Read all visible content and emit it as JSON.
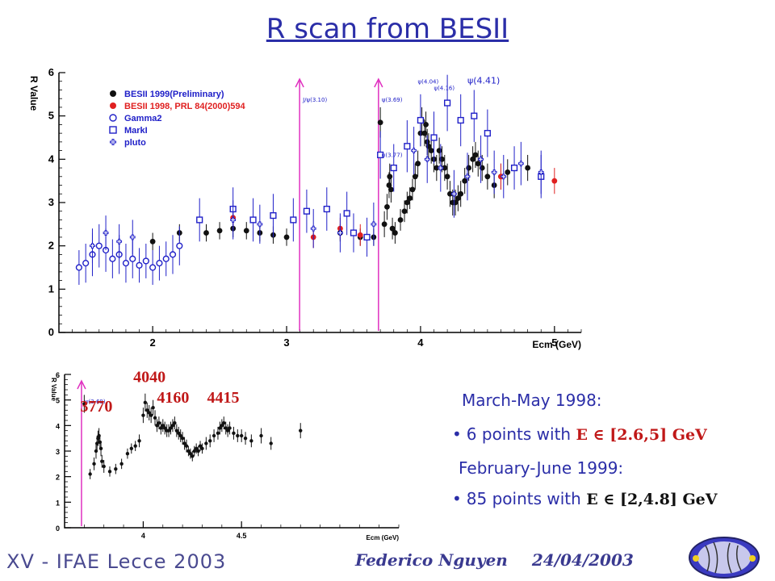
{
  "slide": {
    "title": "R scan from BESII",
    "info": {
      "line1": "March-May 1998:",
      "line2_text": "6 points with ",
      "line2_math": "E ∈ [2.6,5] GeV",
      "line3": "February-June 1999:",
      "line4_text": "85 points with ",
      "line4_math": "E ∈ [2,4.8] GeV"
    },
    "footer": {
      "conference": "XV - IFAE Lecce 2003",
      "author": "Federico Nguyen",
      "date": "24/04/2003"
    }
  },
  "chart_data": [
    {
      "type": "scatter",
      "xlabel": "Ecm (GeV)",
      "ylabel": "R Value",
      "xlim": [
        1.3,
        5.2
      ],
      "ylim": [
        0,
        6
      ],
      "xticks": [
        2,
        3,
        4,
        5
      ],
      "yticks": [
        0,
        1,
        2,
        3,
        4,
        5,
        6
      ],
      "colors": {
        "black": "#111111",
        "red": "#e02020",
        "blue": "#2020c8",
        "magenta": "#e030c0"
      },
      "legend": [
        {
          "label": "BESII 1999(Preliminary)",
          "marker": "filled-circle",
          "color": "black"
        },
        {
          "label": "BESII 1998, PRL 84(2000)594",
          "marker": "filled-circle",
          "color": "red"
        },
        {
          "label": "Gamma2",
          "marker": "open-circle",
          "color": "blue"
        },
        {
          "label": "MarkI",
          "marker": "open-square",
          "color": "blue"
        },
        {
          "label": "pluto",
          "marker": "open-cross",
          "color": "blue"
        }
      ],
      "resonances": [
        {
          "label": "J/ψ(3.10)",
          "x": 3.097
        },
        {
          "label": "ψ(3.69)",
          "x": 3.686
        }
      ],
      "annotations": [
        {
          "label": "ψ(3.77)",
          "x": 3.77,
          "y": 4.05
        },
        {
          "label": "ψ(4.04)",
          "x": 4.04,
          "y": 5.75
        },
        {
          "label": "ψ(4.16)",
          "x": 4.16,
          "y": 5.6
        },
        {
          "label": "ψ(4.41)",
          "x": 4.41,
          "y": 5.75
        }
      ],
      "series": [
        {
          "name": "BESII 1999(Preliminary)",
          "color": "black",
          "marker": "filled-circle",
          "x": [
            2.0,
            2.2,
            2.4,
            2.5,
            2.6,
            2.7,
            2.8,
            2.9,
            3.0,
            3.4,
            3.55,
            3.65,
            3.7,
            3.73,
            3.75,
            3.765,
            3.77,
            3.78,
            3.79,
            3.81,
            3.85,
            3.88,
            3.9,
            3.92,
            3.94,
            3.96,
            3.98,
            4.0,
            4.01,
            4.03,
            4.04,
            4.05,
            4.06,
            4.08,
            4.1,
            4.12,
            4.14,
            4.16,
            4.18,
            4.2,
            4.22,
            4.24,
            4.26,
            4.28,
            4.3,
            4.33,
            4.36,
            4.39,
            4.41,
            4.43,
            4.46,
            4.5,
            4.55,
            4.6,
            4.65,
            4.8
          ],
          "y": [
            2.1,
            2.3,
            2.3,
            2.35,
            2.4,
            2.35,
            2.3,
            2.25,
            2.2,
            2.3,
            2.2,
            2.2,
            4.85,
            2.5,
            2.9,
            3.4,
            3.6,
            3.3,
            2.4,
            2.3,
            2.6,
            2.8,
            3.0,
            3.1,
            3.3,
            3.6,
            3.9,
            4.6,
            4.9,
            4.6,
            4.8,
            4.4,
            4.3,
            4.2,
            4.0,
            3.8,
            4.2,
            4.0,
            3.8,
            3.6,
            3.2,
            3.0,
            3.0,
            3.1,
            3.2,
            3.5,
            3.8,
            4.0,
            4.1,
            3.9,
            3.8,
            3.6,
            3.4,
            3.6,
            3.7,
            3.8
          ],
          "yerr": [
            0.2,
            0.2,
            0.2,
            0.2,
            0.2,
            0.2,
            0.2,
            0.2,
            0.2,
            0.2,
            0.2,
            0.2,
            0.35,
            0.3,
            0.3,
            0.3,
            0.3,
            0.3,
            0.25,
            0.25,
            0.25,
            0.25,
            0.25,
            0.25,
            0.25,
            0.3,
            0.3,
            0.3,
            0.3,
            0.3,
            0.3,
            0.3,
            0.3,
            0.3,
            0.3,
            0.3,
            0.3,
            0.3,
            0.3,
            0.3,
            0.3,
            0.3,
            0.3,
            0.3,
            0.3,
            0.3,
            0.3,
            0.3,
            0.3,
            0.3,
            0.3,
            0.3,
            0.3,
            0.3,
            0.3,
            0.3
          ]
        },
        {
          "name": "BESII 1998, PRL 84(2000)594",
          "color": "red",
          "marker": "filled-circle",
          "x": [
            2.6,
            3.2,
            3.4,
            3.55,
            4.6,
            5.0
          ],
          "y": [
            2.65,
            2.2,
            2.4,
            2.25,
            3.6,
            3.5
          ],
          "yerr": [
            0.25,
            0.25,
            0.25,
            0.25,
            0.3,
            0.3
          ]
        },
        {
          "name": "Gamma2",
          "color": "blue",
          "marker": "open-circle",
          "x": [
            1.45,
            1.5,
            1.55,
            1.6,
            1.65,
            1.7,
            1.75,
            1.8,
            1.85,
            1.9,
            1.95,
            2.0,
            2.05,
            2.1,
            2.15,
            2.2
          ],
          "y": [
            1.5,
            1.6,
            1.8,
            2.0,
            1.9,
            1.7,
            1.8,
            1.6,
            1.7,
            1.55,
            1.65,
            1.5,
            1.6,
            1.7,
            1.8,
            2.0
          ],
          "yerr": [
            0.4,
            0.45,
            0.5,
            0.5,
            0.5,
            0.45,
            0.45,
            0.45,
            0.45,
            0.4,
            0.4,
            0.4,
            0.4,
            0.4,
            0.45,
            0.45
          ]
        },
        {
          "name": "MarkI",
          "color": "blue",
          "marker": "open-square",
          "x": [
            2.35,
            2.6,
            2.75,
            2.9,
            3.05,
            3.15,
            3.3,
            3.45,
            3.5,
            3.6,
            3.7,
            3.8,
            3.9,
            4.0,
            4.1,
            4.2,
            4.3,
            4.4,
            4.5,
            4.7,
            4.9
          ],
          "y": [
            2.6,
            2.85,
            2.6,
            2.7,
            2.6,
            2.8,
            2.85,
            2.75,
            2.3,
            2.2,
            4.1,
            3.8,
            4.3,
            4.9,
            4.5,
            5.3,
            4.9,
            5.0,
            4.6,
            3.8,
            3.6
          ],
          "yerr": [
            0.5,
            0.5,
            0.5,
            0.5,
            0.5,
            0.5,
            0.5,
            0.5,
            0.45,
            0.45,
            0.55,
            0.55,
            0.6,
            0.6,
            0.6,
            0.65,
            0.6,
            0.6,
            0.55,
            0.5,
            0.5
          ]
        },
        {
          "name": "pluto",
          "color": "blue",
          "marker": "open-cross",
          "x": [
            1.55,
            1.65,
            1.75,
            1.85,
            2.6,
            2.8,
            3.2,
            3.4,
            3.65,
            3.95,
            4.05,
            4.15,
            4.25,
            4.35,
            4.45,
            4.55,
            4.62,
            4.75,
            4.9
          ],
          "y": [
            2.0,
            2.3,
            2.1,
            2.2,
            2.6,
            2.5,
            2.4,
            2.3,
            2.5,
            4.2,
            4.0,
            3.8,
            3.2,
            3.6,
            4.0,
            3.7,
            3.6,
            3.9,
            3.7
          ],
          "yerr": [
            0.4,
            0.4,
            0.4,
            0.4,
            0.45,
            0.45,
            0.45,
            0.45,
            0.5,
            0.55,
            0.55,
            0.55,
            0.55,
            0.55,
            0.55,
            0.5,
            0.5,
            0.5,
            0.5
          ]
        }
      ]
    },
    {
      "type": "scatter",
      "xlabel": "Ecm (GeV)",
      "ylabel": "R Value",
      "xlim": [
        3.6,
        5.3
      ],
      "ylim": [
        0,
        6
      ],
      "xticks": [
        4,
        4.5
      ],
      "yticks": [
        0,
        1,
        2,
        3,
        4,
        5,
        6
      ],
      "resonance": {
        "label": "ψ(3.69)",
        "x": 3.686
      },
      "labels": [
        {
          "text": "3770",
          "x": 3.77,
          "y": 4.55
        },
        {
          "text": "4040",
          "x": 4.04,
          "y": 5.7
        },
        {
          "text": "4160",
          "x": 4.16,
          "y": 4.9
        },
        {
          "text": "4415",
          "x": 4.415,
          "y": 4.9
        }
      ],
      "series": [
        {
          "name": "BESII 1999(Preliminary)",
          "color": "black",
          "marker": "filled-circle",
          "x": [
            3.7,
            3.73,
            3.75,
            3.76,
            3.765,
            3.77,
            3.775,
            3.78,
            3.785,
            3.79,
            3.8,
            3.83,
            3.86,
            3.89,
            3.92,
            3.94,
            3.96,
            3.98,
            4.0,
            4.01,
            4.02,
            4.03,
            4.04,
            4.05,
            4.06,
            4.07,
            4.08,
            4.09,
            4.1,
            4.11,
            4.12,
            4.13,
            4.14,
            4.15,
            4.16,
            4.17,
            4.18,
            4.19,
            4.2,
            4.21,
            4.22,
            4.23,
            4.24,
            4.25,
            4.26,
            4.27,
            4.28,
            4.29,
            4.3,
            4.32,
            4.34,
            4.36,
            4.38,
            4.39,
            4.4,
            4.41,
            4.42,
            4.43,
            4.44,
            4.46,
            4.48,
            4.5,
            4.52,
            4.55,
            4.6,
            4.65,
            4.8
          ],
          "y": [
            4.85,
            2.1,
            2.5,
            3.0,
            3.3,
            3.5,
            3.6,
            3.35,
            3.1,
            2.6,
            2.4,
            2.2,
            2.3,
            2.5,
            2.9,
            3.1,
            3.2,
            3.4,
            4.4,
            4.9,
            4.6,
            4.5,
            4.4,
            4.7,
            4.3,
            4.0,
            4.1,
            3.9,
            4.0,
            3.9,
            3.8,
            3.8,
            3.9,
            4.0,
            4.1,
            3.8,
            3.7,
            3.6,
            3.5,
            3.3,
            3.2,
            3.0,
            2.9,
            2.8,
            3.0,
            3.1,
            3.0,
            3.2,
            3.1,
            3.3,
            3.4,
            3.6,
            3.7,
            3.9,
            4.0,
            4.1,
            3.9,
            3.8,
            3.9,
            3.7,
            3.6,
            3.6,
            3.5,
            3.4,
            3.6,
            3.3,
            3.8
          ],
          "yerr": [
            0.35,
            0.2,
            0.25,
            0.3,
            0.3,
            0.3,
            0.3,
            0.3,
            0.3,
            0.25,
            0.25,
            0.2,
            0.2,
            0.2,
            0.2,
            0.2,
            0.2,
            0.25,
            0.3,
            0.35,
            0.3,
            0.3,
            0.3,
            0.3,
            0.3,
            0.25,
            0.25,
            0.25,
            0.25,
            0.25,
            0.25,
            0.25,
            0.25,
            0.25,
            0.25,
            0.25,
            0.25,
            0.25,
            0.25,
            0.25,
            0.25,
            0.2,
            0.2,
            0.2,
            0.2,
            0.2,
            0.2,
            0.2,
            0.2,
            0.25,
            0.25,
            0.25,
            0.25,
            0.25,
            0.25,
            0.25,
            0.25,
            0.25,
            0.25,
            0.25,
            0.25,
            0.25,
            0.25,
            0.25,
            0.3,
            0.25,
            0.3
          ]
        }
      ]
    }
  ]
}
